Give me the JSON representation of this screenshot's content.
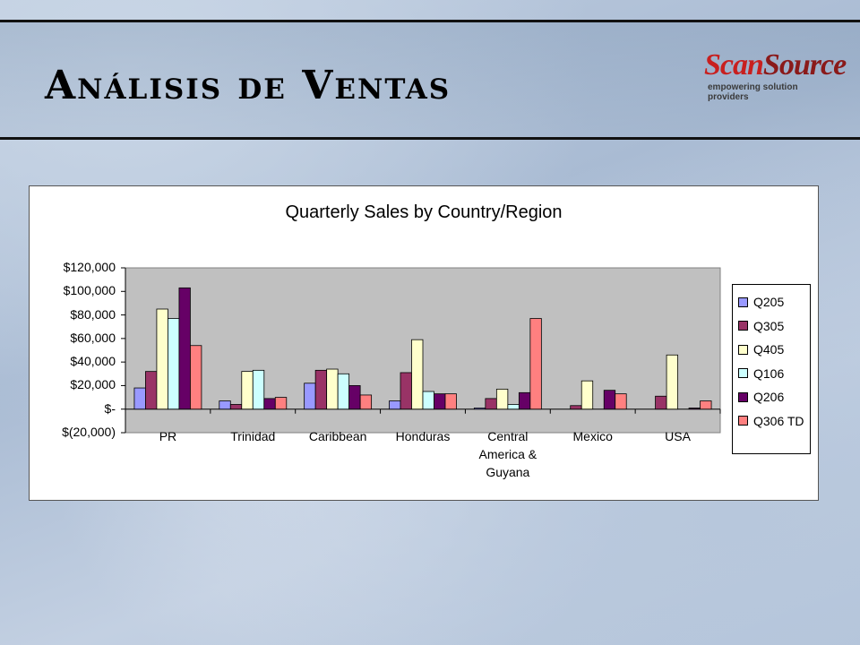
{
  "page": {
    "title": "Análisis de Ventas",
    "logo_word_1": "Scan",
    "logo_word_2": "Source",
    "logo_tagline": "empowering solution providers"
  },
  "chart_data": {
    "type": "bar",
    "title": "Quarterly Sales by Country/Region",
    "xlabel": "",
    "ylabel": "",
    "ylim": [
      -20000,
      120000
    ],
    "yticks": [
      120000,
      100000,
      80000,
      60000,
      40000,
      20000,
      0,
      -20000
    ],
    "ytick_labels": [
      "$120,000",
      "$100,000",
      "$80,000",
      "$60,000",
      "$40,000",
      "$20,000",
      "$-",
      "$(20,000)"
    ],
    "categories": [
      "PR",
      "Trinidad",
      "Caribbean",
      "Honduras",
      "Central America & Guyana",
      "Mexico",
      "USA"
    ],
    "category_lines": [
      [
        "PR"
      ],
      [
        "Trinidad"
      ],
      [
        "Caribbean"
      ],
      [
        "Honduras"
      ],
      [
        "Central",
        "America &",
        "Guyana"
      ],
      [
        "Mexico"
      ],
      [
        "USA"
      ]
    ],
    "legend_position": "right",
    "grid": false,
    "plot_background": "#c0c0c0",
    "series": [
      {
        "name": "Q205",
        "color": "#9999ff",
        "values": [
          18000,
          7000,
          22000,
          7000,
          1000,
          0,
          0
        ]
      },
      {
        "name": "Q305",
        "color": "#993366",
        "values": [
          32000,
          4000,
          33000,
          31000,
          9000,
          3000,
          11000
        ]
      },
      {
        "name": "Q405",
        "color": "#ffffcc",
        "values": [
          85000,
          32000,
          34000,
          59000,
          17000,
          24000,
          46000
        ]
      },
      {
        "name": "Q106",
        "color": "#ccffff",
        "values": [
          77000,
          33000,
          30000,
          15000,
          4000,
          0,
          0
        ]
      },
      {
        "name": "Q206",
        "color": "#660066",
        "values": [
          103000,
          9000,
          20000,
          13000,
          14000,
          16000,
          1000
        ]
      },
      {
        "name": "Q306 TD",
        "color": "#ff8080",
        "values": [
          54000,
          10000,
          12000,
          13000,
          77000,
          13000,
          7000
        ]
      }
    ]
  }
}
